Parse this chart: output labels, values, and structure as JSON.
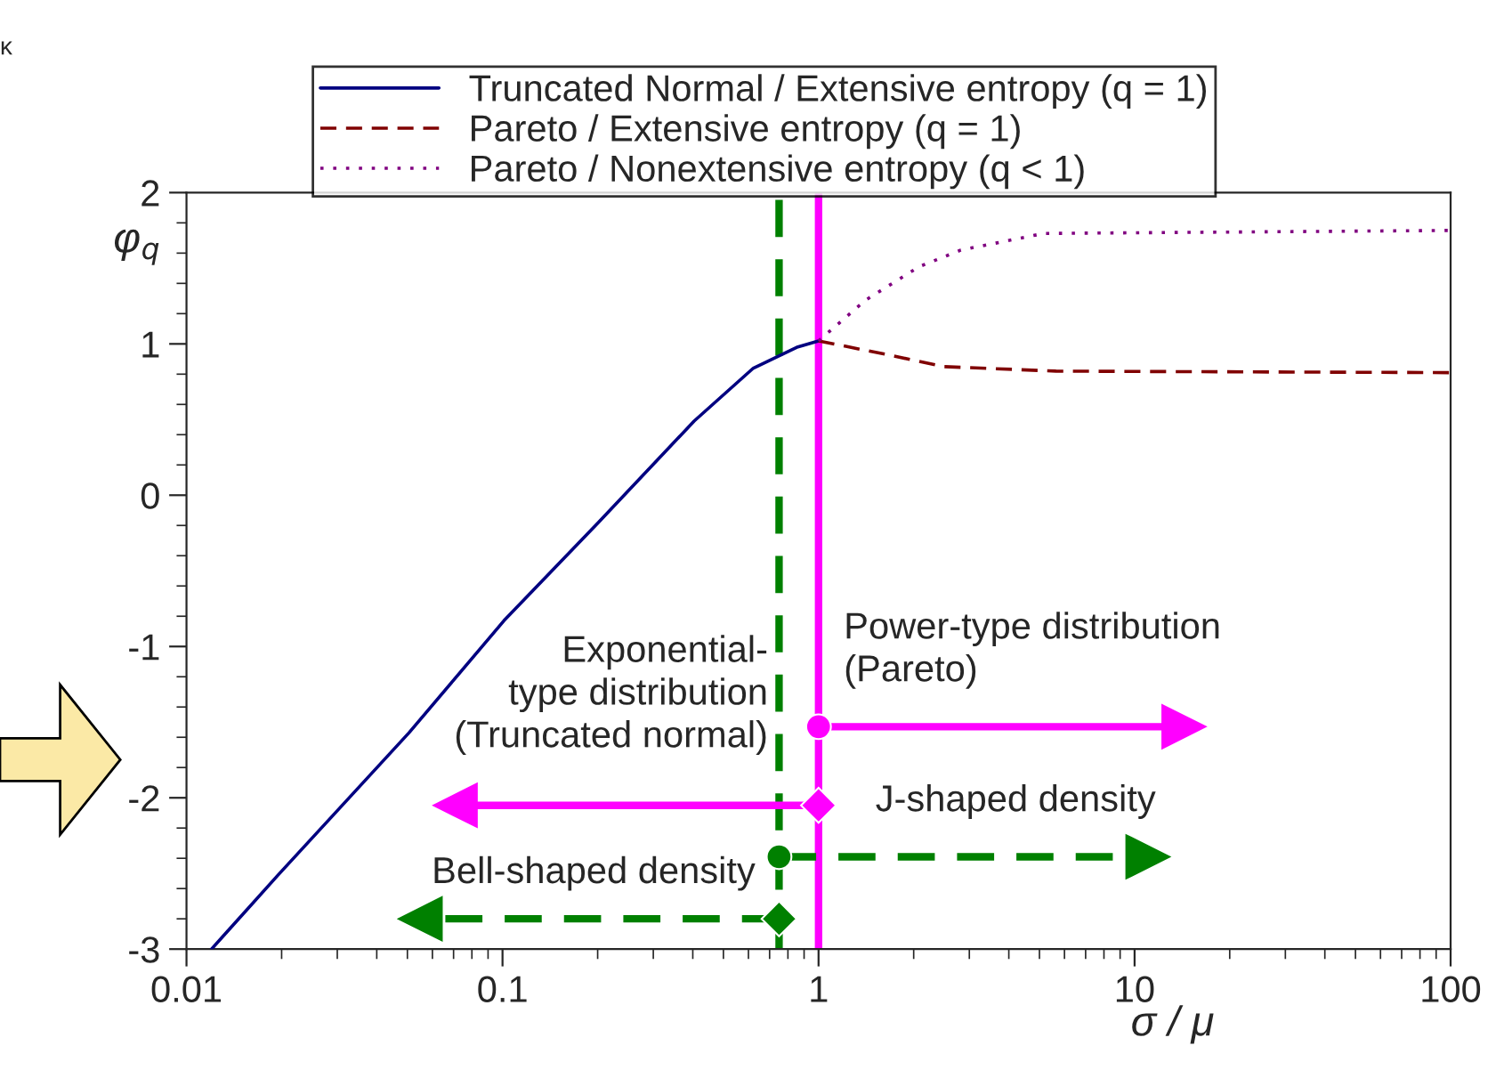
{
  "chart_data": {
    "type": "line",
    "xlabel": "σ / μ",
    "ylabel": "φ$_{q}$",
    "log": "x",
    "xlim": [
      0.01,
      100
    ],
    "xticks": [
      0.01,
      0.1,
      1,
      10,
      100
    ],
    "ylim": [
      -3,
      2
    ],
    "yticks": [
      -3,
      -2,
      -1,
      0,
      1,
      2
    ],
    "legend": "top",
    "grid": false,
    "series": [
      {
        "name": "Truncated Normal / Extensive entropy (q = 1)",
        "color": "#000080",
        "line_style": "solid",
        "x": [
          0.012,
          0.0195,
          0.0506,
          0.101,
          0.201,
          0.404,
          0.622,
          0.86,
          1
        ],
        "values": [
          -3,
          -2.51,
          -1.57,
          -0.83,
          -0.18,
          0.49,
          0.84,
          0.98,
          1.02
        ]
      },
      {
        "name": "Pareto / Extensive entropy (q = 1)",
        "color": "#800000",
        "line_style": "dashed",
        "x": [
          1,
          1.64,
          2.48,
          5.64,
          100
        ],
        "values": [
          1.02,
          0.93,
          0.85,
          0.82,
          0.81
        ]
      },
      {
        "name": "Pareto / Nonextensive entropy (q < 1)",
        "color": "#800080",
        "line_style": "dotted",
        "x": [
          1,
          1.41,
          2.08,
          2.82,
          5.16,
          100
        ],
        "values": [
          1.02,
          1.29,
          1.51,
          1.62,
          1.73,
          1.75
        ]
      },
      {
        "color": "#ff00ff",
        "line_style": "solid",
        "marker": "circle",
        "x": [
          1,
          14.3
        ],
        "values": [
          -1.53,
          -1.53
        ]
      },
      {
        "color": "#ff00ff",
        "line_style": "solid",
        "marker": "diamond",
        "x": [
          1,
          0.071
        ],
        "values": [
          -2.05,
          -2.05
        ]
      },
      {
        "color": "#008000",
        "line_style": "dashed",
        "marker": "circle",
        "x": [
          0.75,
          11
        ],
        "values": [
          -2.39,
          -2.39
        ]
      },
      {
        "color": "#008000",
        "line_style": "dashed",
        "marker": "diamond",
        "x": [
          0.75,
          0.055
        ],
        "values": [
          -2.8,
          -2.8
        ]
      }
    ],
    "ref_lines": [
      {
        "axis": "x",
        "value": 0.75,
        "color": "#008000",
        "line_style": "dashed"
      },
      {
        "axis": "x",
        "value": 1,
        "color": "#ff00ff",
        "line_style": "solid"
      }
    ],
    "annotations": [
      "Exponential-\ntype distribution\n(Truncated normal)",
      "Power-type distribution\n(Pareto)",
      "J-shaped density",
      "Bell-shaped density",
      "κ"
    ]
  }
}
